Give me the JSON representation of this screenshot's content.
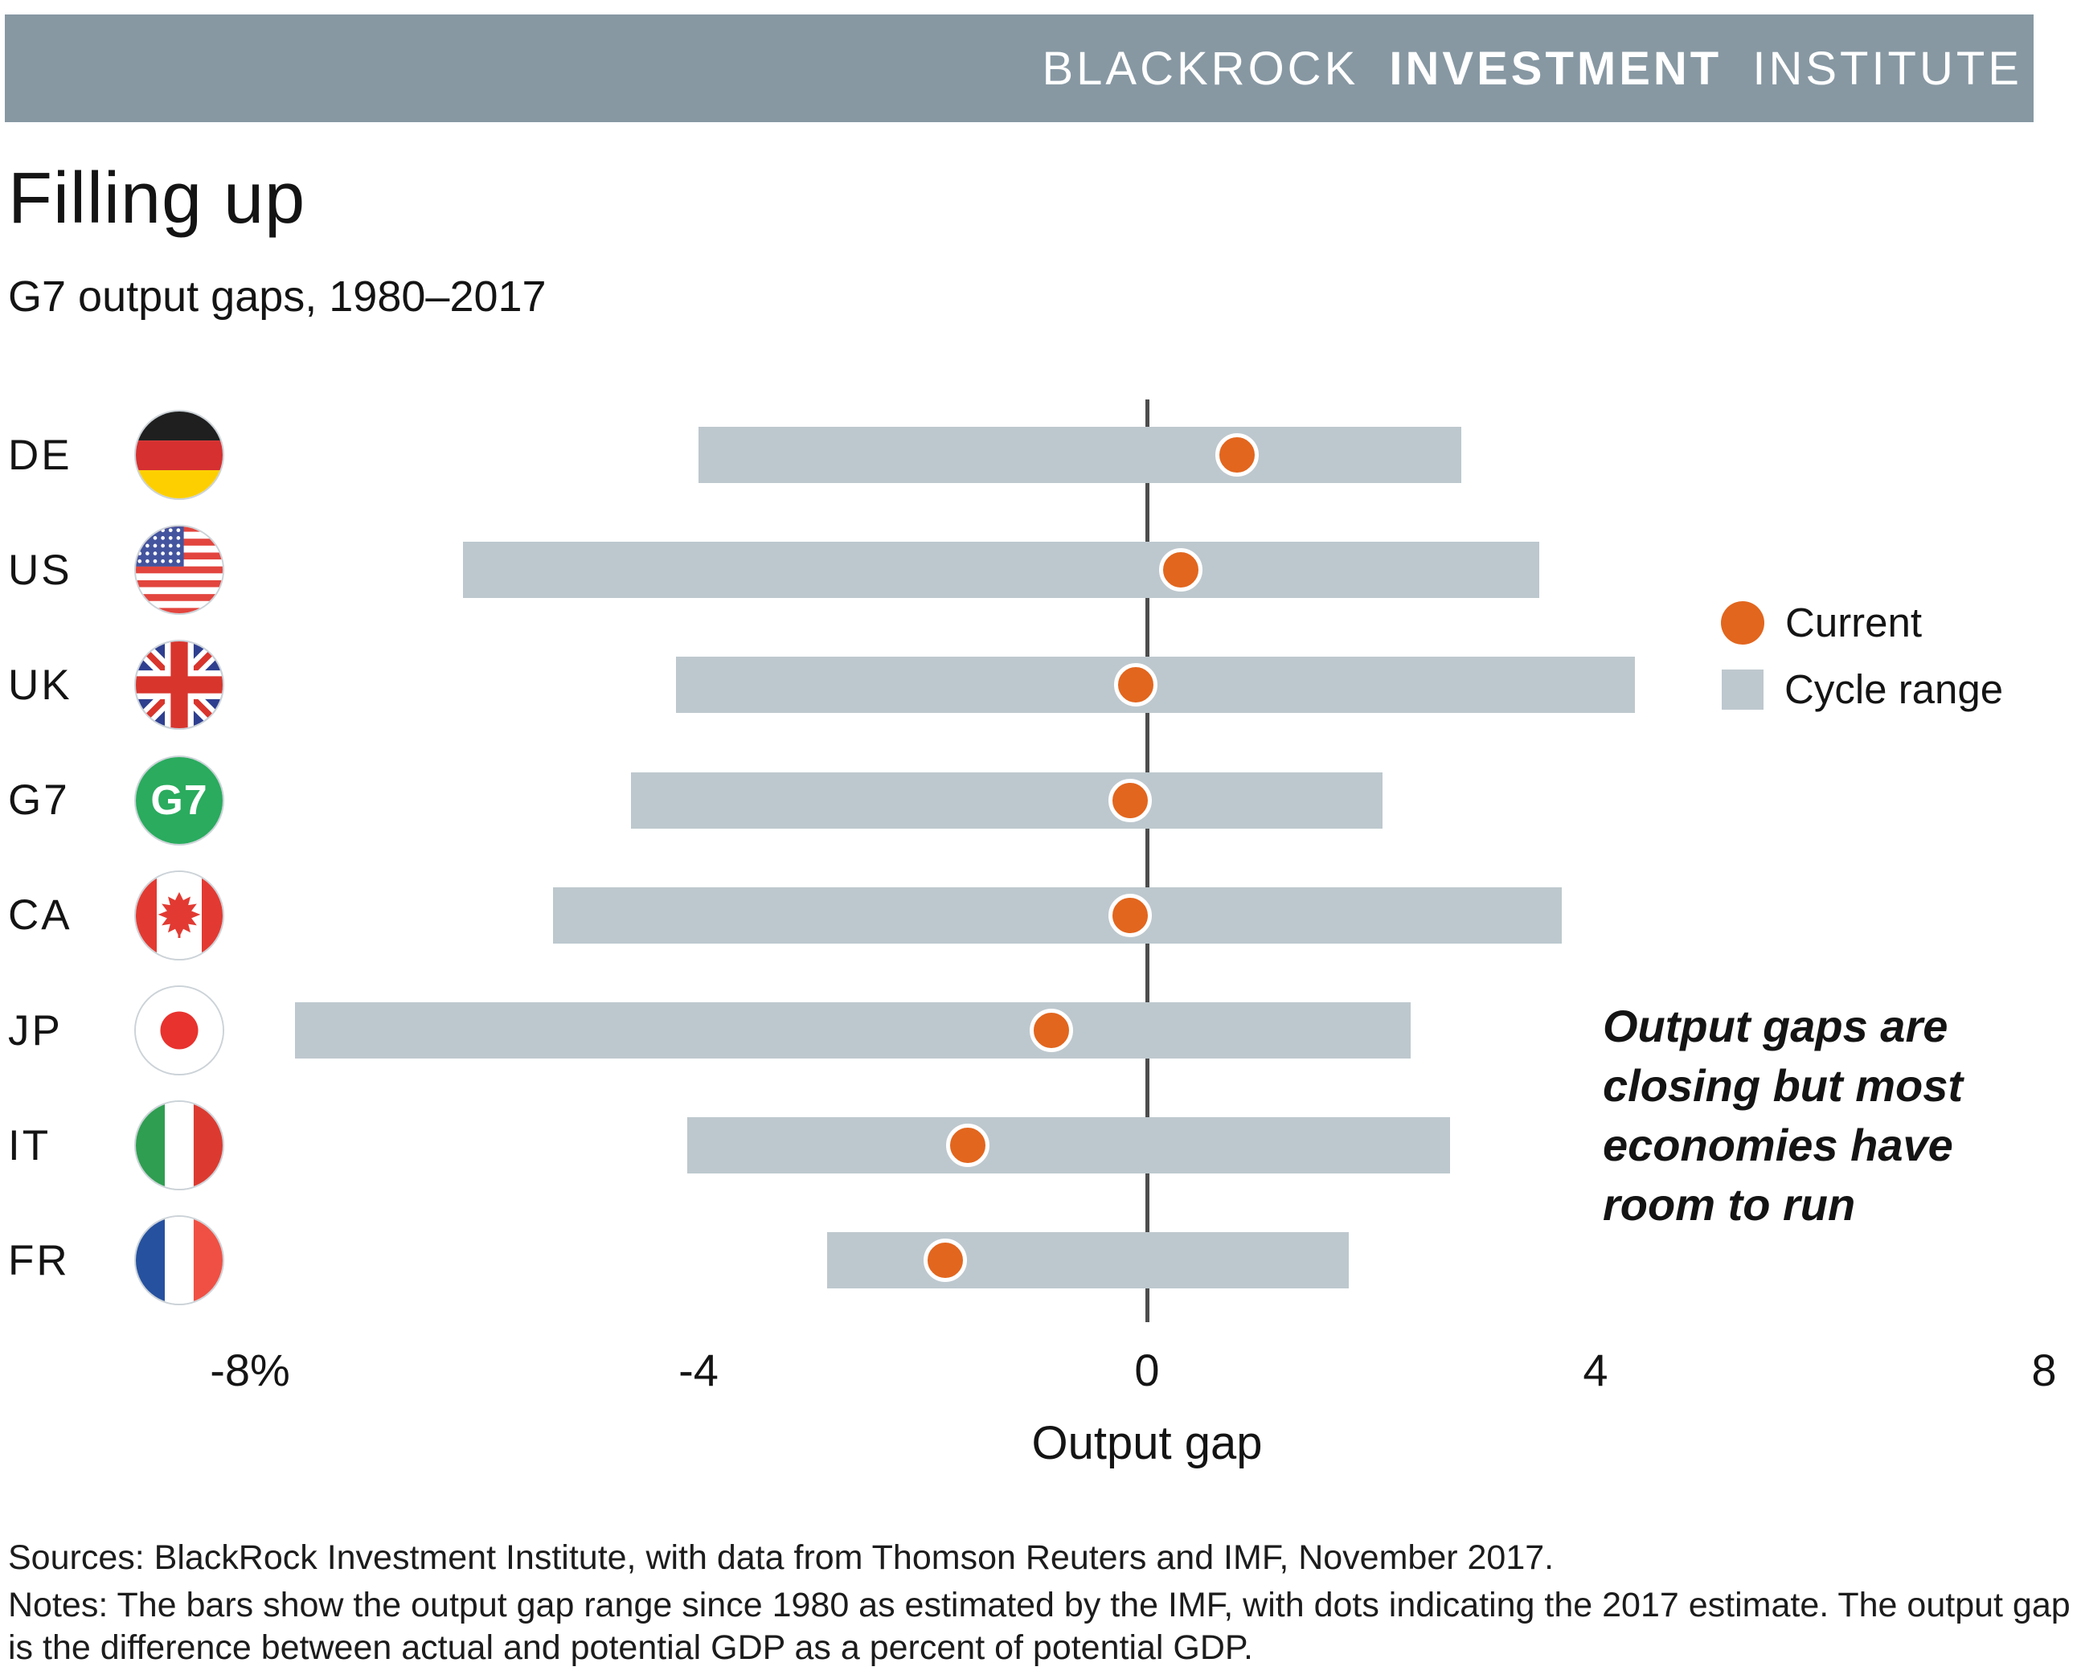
{
  "header": {
    "brand1": "BLACKROCK",
    "brand2": "INVESTMENT",
    "brand3": "INSTITUTE"
  },
  "title": "Filling up",
  "subtitle": "G7 output gaps, 1980–2017",
  "legend": {
    "current_label": "Current",
    "cycle_range_label": "Cycle range"
  },
  "annotation": {
    "lines": [
      "Output gaps are",
      "closing but most",
      "economies have",
      "room to run"
    ]
  },
  "colors": {
    "header_bg": "#8798a3",
    "bar": "#bdc8ce",
    "dot": "#e2661e",
    "zero_line": "#4d4d4d",
    "g7_badge": "#2aab5e"
  },
  "chart_data": {
    "type": "bar",
    "subtype": "range-bar-with-dot",
    "title": "Filling up",
    "subtitle": "G7 output gaps, 1980–2017",
    "xlabel": "Output gap",
    "xlim": [
      -8,
      8
    ],
    "grid": false,
    "legend_position": "right",
    "x_ticks": [
      {
        "value": -8,
        "label": "-8%"
      },
      {
        "value": -4,
        "label": "-4"
      },
      {
        "value": 0,
        "label": "0"
      },
      {
        "value": 4,
        "label": "4"
      },
      {
        "value": 8,
        "label": "8"
      }
    ],
    "series": [
      {
        "code": "DE",
        "flag": "de",
        "range": [
          -4.0,
          2.8
        ],
        "current": 0.8
      },
      {
        "code": "US",
        "flag": "us",
        "range": [
          -6.1,
          3.5
        ],
        "current": 0.3
      },
      {
        "code": "UK",
        "flag": "uk",
        "range": [
          -4.2,
          4.35
        ],
        "current": -0.1
      },
      {
        "code": "G7",
        "flag": "g7",
        "badge_text": "G7",
        "range": [
          -4.6,
          2.1
        ],
        "current": -0.15
      },
      {
        "code": "CA",
        "flag": "ca",
        "range": [
          -5.3,
          3.7
        ],
        "current": -0.15
      },
      {
        "code": "JP",
        "flag": "jp",
        "range": [
          -7.6,
          2.35
        ],
        "current": -0.85
      },
      {
        "code": "IT",
        "flag": "it",
        "range": [
          -4.1,
          2.7
        ],
        "current": -1.6
      },
      {
        "code": "FR",
        "flag": "fr",
        "range": [
          -2.85,
          1.8
        ],
        "current": -1.8
      }
    ],
    "legend_entries": [
      "Current",
      "Cycle range"
    ]
  },
  "footer": {
    "sources": "Sources: BlackRock Investment Institute, with data from Thomson Reuters and IMF, November 2017.",
    "notes": "Notes: The bars show the output gap range since 1980 as estimated by the IMF, with dots indicating the 2017 estimate. The output gap is the difference between actual and potential GDP as a percent of potential GDP."
  }
}
